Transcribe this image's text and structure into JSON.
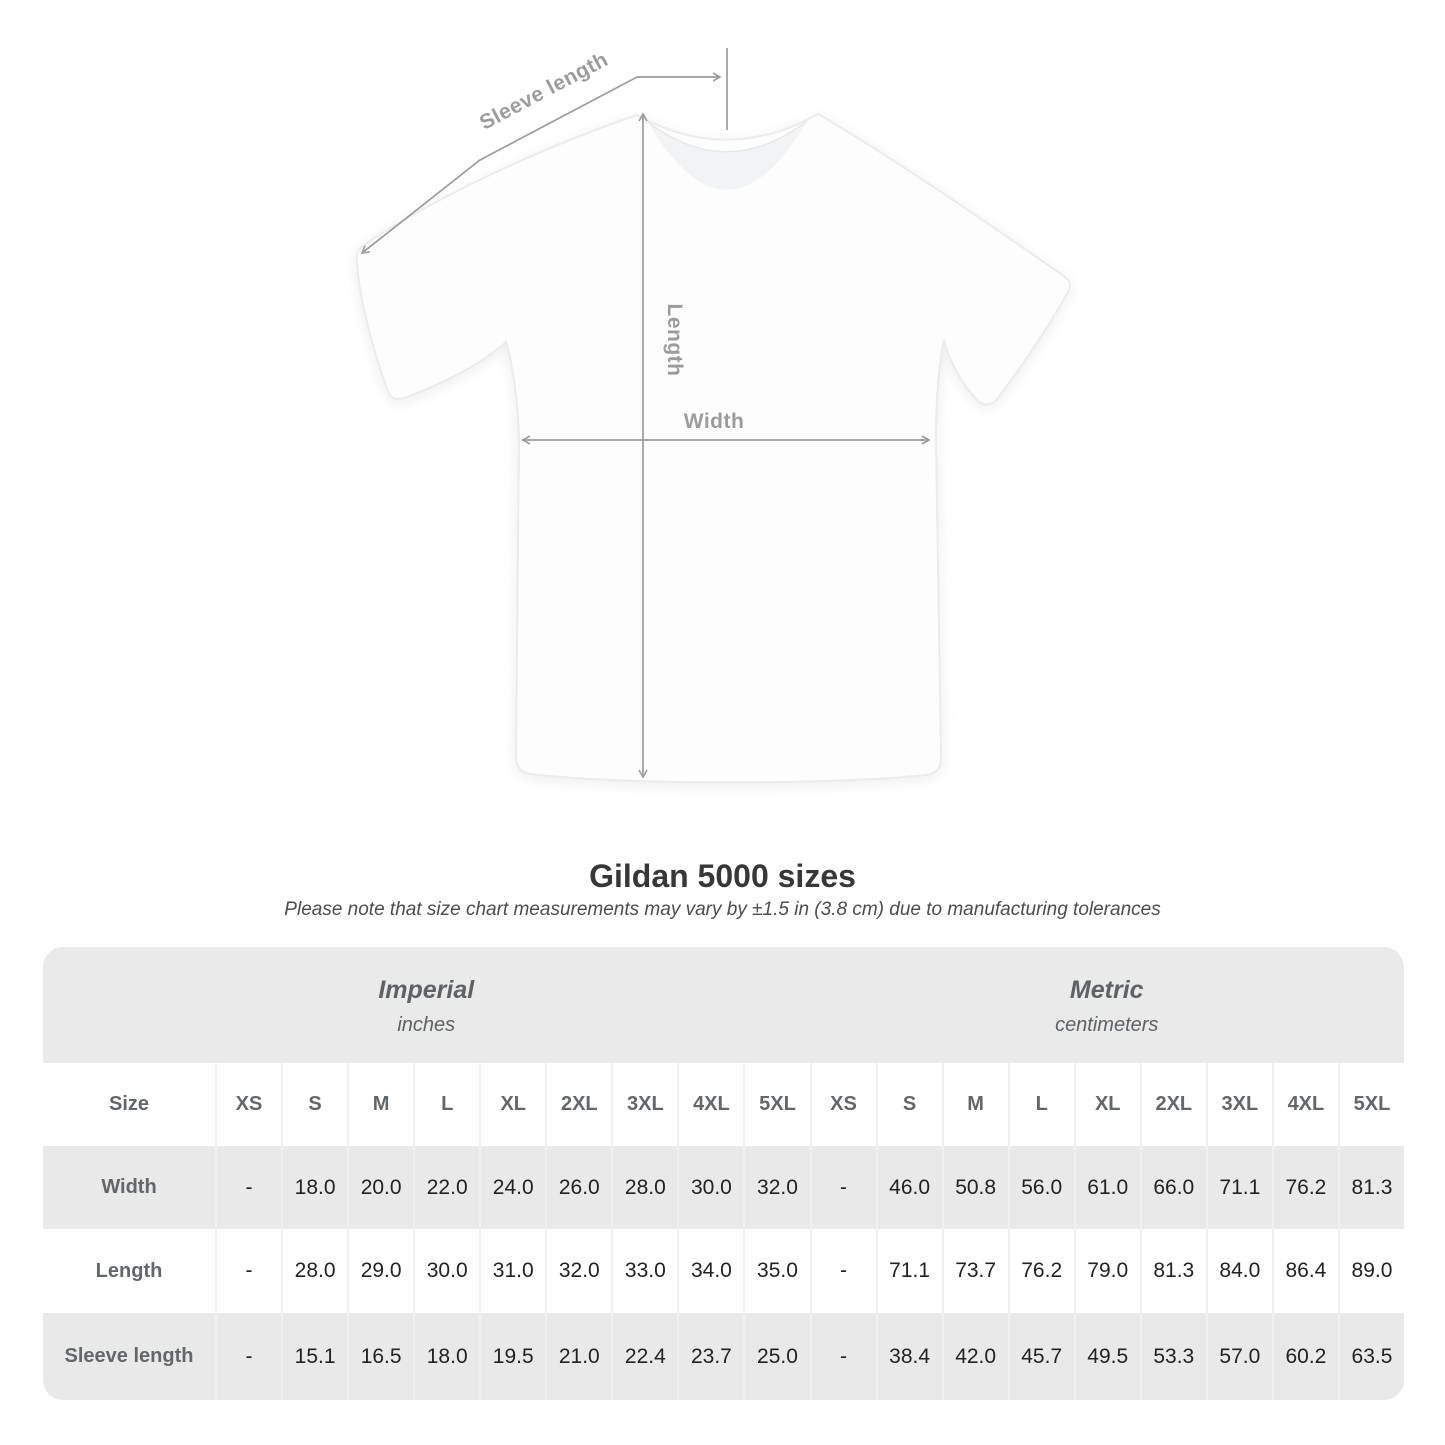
{
  "diagram": {
    "sleeve_label": "Sleeve length",
    "length_label": "Length",
    "width_label": "Width"
  },
  "heading": {
    "title": "Gildan 5000 sizes",
    "note": "Please note that size chart measurements may vary by ±1.5 in (3.8 cm) due to manufacturing tolerances"
  },
  "chart_data": {
    "type": "table",
    "title": "Gildan 5000 sizes",
    "corner_header": "Size",
    "unit_groups": [
      {
        "label": "Imperial",
        "unit": "inches",
        "sizes": [
          "XS",
          "S",
          "M",
          "L",
          "XL",
          "2XL",
          "3XL",
          "4XL",
          "5XL"
        ]
      },
      {
        "label": "Metric",
        "unit": "centimeters",
        "sizes": [
          "XS",
          "S",
          "M",
          "L",
          "XL",
          "2XL",
          "3XL",
          "4XL",
          "5XL"
        ]
      }
    ],
    "rows": [
      {
        "label": "Width",
        "imperial": [
          "-",
          "18.0",
          "20.0",
          "22.0",
          "24.0",
          "26.0",
          "28.0",
          "30.0",
          "32.0"
        ],
        "metric": [
          "-",
          "46.0",
          "50.8",
          "56.0",
          "61.0",
          "66.0",
          "71.1",
          "76.2",
          "81.3"
        ]
      },
      {
        "label": "Length",
        "imperial": [
          "-",
          "28.0",
          "29.0",
          "30.0",
          "31.0",
          "32.0",
          "33.0",
          "34.0",
          "35.0"
        ],
        "metric": [
          "-",
          "71.1",
          "73.7",
          "76.2",
          "79.0",
          "81.3",
          "84.0",
          "86.4",
          "89.0"
        ]
      },
      {
        "label": "Sleeve length",
        "imperial": [
          "-",
          "15.1",
          "16.5",
          "18.0",
          "19.5",
          "21.0",
          "22.4",
          "23.7",
          "25.0"
        ],
        "metric": [
          "-",
          "38.4",
          "42.0",
          "45.7",
          "49.5",
          "53.3",
          "57.0",
          "60.2",
          "63.5"
        ]
      }
    ]
  },
  "colors": {
    "row_shade": "#e9e9e9",
    "band_shade": "#eaeaea",
    "separator": "#f0f0f0",
    "value_text": "#222222",
    "header_text": "#63676a",
    "arrow": "#9a9c9e"
  }
}
